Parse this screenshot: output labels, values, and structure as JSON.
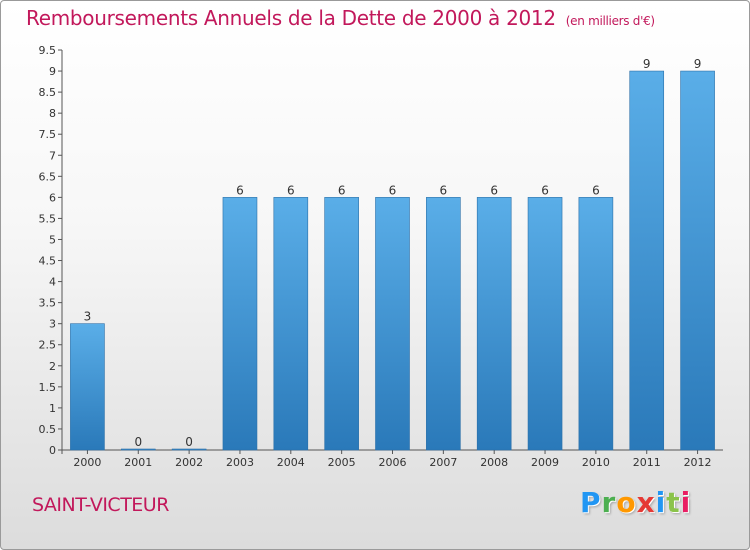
{
  "header": {
    "title": "Remboursements Annuels de la Dette de 2000 à 2012",
    "unit": "(en milliers d'€)"
  },
  "commune": "SAINT-VICTEUR",
  "logo": {
    "letters": [
      "P",
      "r",
      "o",
      "x",
      "i",
      "t",
      "i"
    ],
    "colors": [
      "#2196f3",
      "#4caf50",
      "#ff9800",
      "#e53935",
      "#2196f3",
      "#8bc34a",
      "#e91e63"
    ]
  },
  "chart_data": {
    "type": "bar",
    "categories": [
      "2000",
      "2001",
      "2002",
      "2003",
      "2004",
      "2005",
      "2006",
      "2007",
      "2008",
      "2009",
      "2010",
      "2011",
      "2012"
    ],
    "values": [
      3,
      0,
      0,
      6,
      6,
      6,
      6,
      6,
      6,
      6,
      6,
      9,
      9
    ],
    "data_labels": [
      "3",
      "0",
      "0",
      "6",
      "6",
      "6",
      "6",
      "6",
      "6",
      "6",
      "6",
      "9",
      "9"
    ],
    "y_ticks": [
      "0",
      "0.5",
      "1",
      "1.5",
      "2",
      "2.5",
      "3",
      "3.5",
      "4",
      "4.5",
      "5",
      "5.5",
      "6",
      "6.5",
      "7",
      "7.5",
      "8",
      "8.5",
      "9",
      "9.5"
    ],
    "ylim": [
      0,
      9.5
    ],
    "grid": false,
    "bar_color_top": "#5aaee8",
    "bar_color_bottom": "#2a79b9"
  }
}
